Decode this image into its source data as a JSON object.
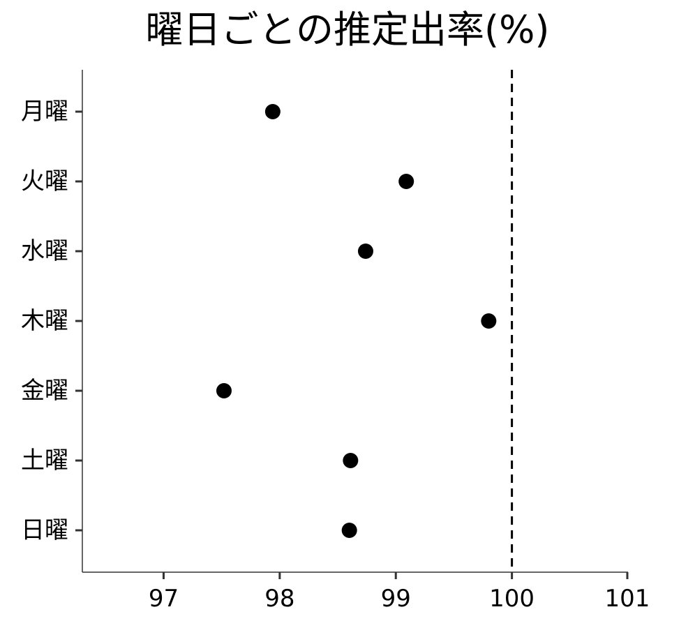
{
  "chart_data": {
    "type": "scatter",
    "title": "曜日ごとの推定出率(%)",
    "xlabel": "",
    "ylabel": "",
    "categories": [
      "月曜",
      "火曜",
      "水曜",
      "木曜",
      "金曜",
      "土曜",
      "日曜"
    ],
    "values": [
      97.94,
      99.09,
      98.74,
      99.8,
      97.52,
      98.61,
      98.6
    ],
    "xlim": [
      96.3,
      101.0
    ],
    "xticks": [
      97,
      98,
      99,
      100,
      101
    ],
    "reference_line": {
      "x": 100,
      "style": "dashed"
    },
    "grid": false,
    "legend": "none",
    "colors": {
      "point": "#000000",
      "axis": "#333333",
      "text": "#000000"
    }
  }
}
